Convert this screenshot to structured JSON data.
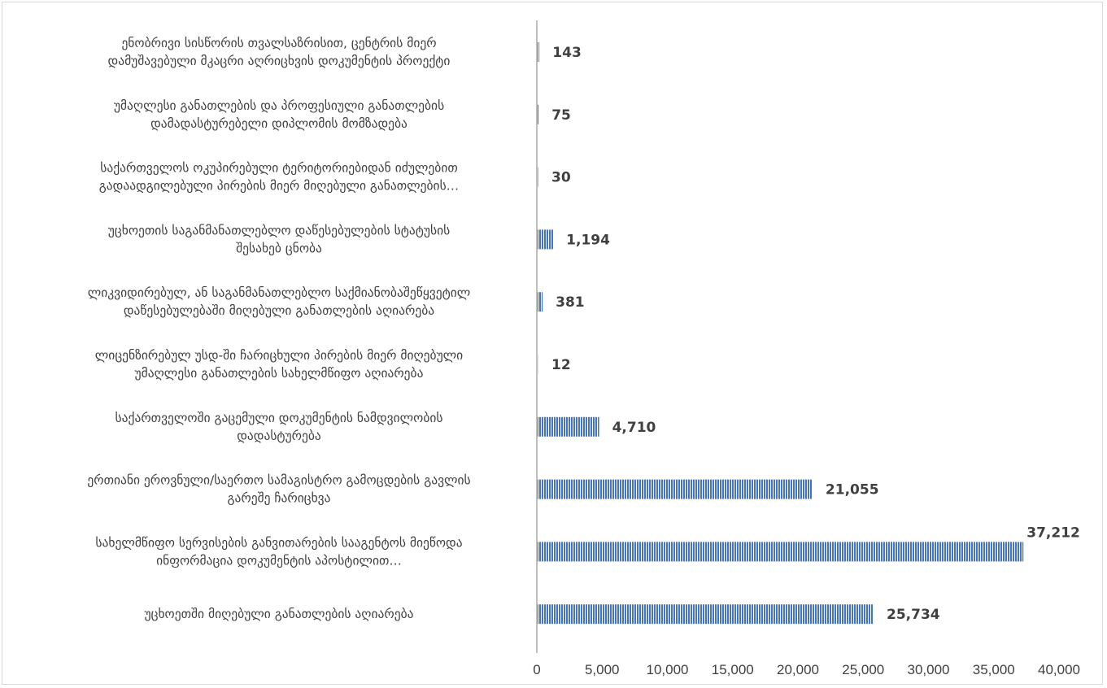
{
  "chart_data": {
    "type": "bar",
    "orientation": "horizontal",
    "title": "",
    "xlabel": "",
    "ylabel": "",
    "xlim": [
      0,
      40000
    ],
    "xticks": [
      0,
      5000,
      10000,
      15000,
      20000,
      25000,
      30000,
      35000,
      40000
    ],
    "xtick_labels": [
      "0",
      "5,000",
      "10,000",
      "15,000",
      "20,000",
      "25,000",
      "30,000",
      "35,000",
      "40,000"
    ],
    "grid": false,
    "legend": "none",
    "bar_color": "#4472c4",
    "bar_pattern": "vertical-stripes",
    "categories": [
      [
        "ენობრივი სისწორის თვალსაზრისით, ცენტრის მიერ",
        "დამუშავებული მკაცრი აღრიცხვის დოკუმენტის პროექტი"
      ],
      [
        "უმაღლესი განათლების და პროფესიული განათლების",
        "დამადასტურებელი  დიპლომის მომზადება"
      ],
      [
        "საქართველოს ოკუპირებული ტერიტორიებიდან იძულებით",
        "გადაადგილებული პირების მიერ მიღებული განათლების…"
      ],
      [
        "უცხოეთის საგანმანათლებლო დაწესებულების სტატუსის",
        "შესახებ  ცნობა"
      ],
      [
        "ლიკვიდირებულ, ან საგანმანათლებლო საქმიანობაშეწყვეტილ",
        "დაწესებულებაში მიღებული განათლების აღიარება"
      ],
      [
        "ლიცენზირებულ უსდ-ში ჩარიცხული პირების მიერ მიღებული",
        "უმაღლესი განათლების სახელმწიფო აღიარება"
      ],
      [
        "საქართველოში გაცემული დოკუმენტის ნამდვილობის",
        "დადასტურება"
      ],
      [
        "ერთიანი ეროვნული/საერთო სამაგისტრო გამოცდების გავლის",
        "გარეშე ჩარიცხვა"
      ],
      [
        "სახელმწიფო სერვისების განვითარების სააგენტოს მიეწოდა",
        "ინფორმაცია დოკუმენტის აპოსტილით…"
      ],
      [
        "უცხოეთში მიღებული განათლების აღიარება"
      ]
    ],
    "values": [
      143,
      75,
      30,
      1194,
      381,
      12,
      4710,
      21055,
      37212,
      25734
    ],
    "value_labels": [
      "143",
      "75",
      "30",
      "1,194",
      "381",
      "12",
      "4,710",
      "21,055",
      "37,212",
      "25,734"
    ]
  }
}
